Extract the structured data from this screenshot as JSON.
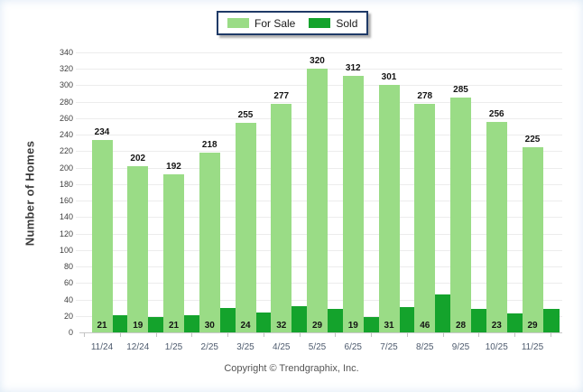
{
  "legend": {
    "items": [
      {
        "label": "For Sale",
        "color": "#9ADC86"
      },
      {
        "label": "Sold",
        "color": "#14A32C"
      }
    ],
    "border_color": "#1F3A67"
  },
  "chart_data": {
    "type": "bar",
    "categories": [
      "11/24",
      "12/24",
      "1/25",
      "2/25",
      "3/25",
      "4/25",
      "5/25",
      "6/25",
      "7/25",
      "8/25",
      "9/25",
      "10/25",
      "11/25"
    ],
    "series": [
      {
        "name": "For Sale",
        "color": "#9ADC86",
        "values": [
          234,
          202,
          192,
          218,
          255,
          277,
          320,
          312,
          301,
          278,
          285,
          256,
          225
        ]
      },
      {
        "name": "Sold",
        "color": "#14A32C",
        "values": [
          21,
          19,
          21,
          30,
          24,
          32,
          29,
          19,
          31,
          46,
          28,
          23,
          29
        ]
      }
    ],
    "title": "",
    "xlabel": "",
    "ylabel": "Number of Homes",
    "ylim": [
      0,
      340
    ],
    "ytick_step": 20,
    "grid": true,
    "legend_position": "top-center"
  },
  "footer": {
    "copyright": "Copyright © Trendgraphix, Inc."
  }
}
